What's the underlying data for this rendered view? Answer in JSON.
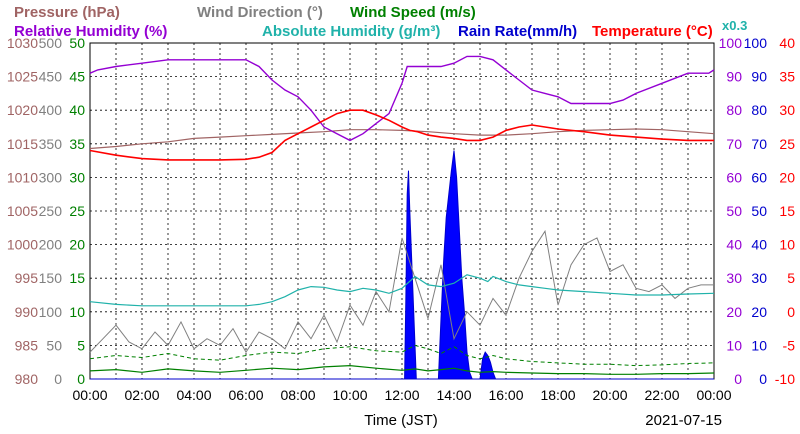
{
  "chart_data": {
    "type": "line",
    "date": "2021-07-15",
    "xlabel": "Time (JST)",
    "x_ticks": [
      "00:00",
      "02:00",
      "04:00",
      "06:00",
      "08:00",
      "10:00",
      "12:00",
      "14:00",
      "16:00",
      "18:00",
      "20:00",
      "22:00",
      "00:00"
    ],
    "x_range_hours": [
      0,
      24
    ],
    "grid": true,
    "legend": [
      {
        "key": "pressure",
        "label": "Pressure (hPa)",
        "color": "#a06464"
      },
      {
        "key": "wind_dir",
        "label": "Wind Direction (°)",
        "color": "#808080"
      },
      {
        "key": "wind_speed",
        "label": "Wind Speed (m/s)",
        "color": "#008000"
      },
      {
        "key": "rh",
        "label": "Relative Humidity (%)",
        "color": "#9400d3"
      },
      {
        "key": "ah",
        "label": "Absolute Humidity (g/m³)",
        "color": "#20b2aa"
      },
      {
        "key": "rain",
        "label": "Rain Rate(mm/h)",
        "color": "#0000cd"
      },
      {
        "key": "temp",
        "label": "Temperature (°C)",
        "color": "#ff0000"
      },
      {
        "key": "ah_scale",
        "label": "x0.3",
        "color": "#20b2aa"
      }
    ],
    "axes": {
      "pressure": {
        "range": [
          980,
          1030
        ],
        "ticks": [
          "980",
          "985",
          "990",
          "995",
          "1000",
          "1005",
          "1010",
          "1015",
          "1020",
          "1025",
          "1030"
        ],
        "color": "#a06464"
      },
      "wind_dir": {
        "range": [
          0,
          500
        ],
        "ticks": [
          "0",
          "50",
          "100",
          "150",
          "200",
          "250",
          "300",
          "350",
          "400",
          "450",
          "500"
        ],
        "color": "#808080"
      },
      "wind_speed": {
        "range": [
          0,
          50
        ],
        "ticks": [
          "0",
          "5",
          "10",
          "15",
          "20",
          "25",
          "30",
          "35",
          "40",
          "45",
          "50"
        ],
        "color": "#008000"
      },
      "rh": {
        "range": [
          0,
          100
        ],
        "ticks": [
          "0",
          "10",
          "20",
          "30",
          "40",
          "50",
          "60",
          "70",
          "80",
          "90",
          "100"
        ],
        "color": "#9400d3"
      },
      "rain": {
        "range": [
          0,
          100
        ],
        "ticks": [
          "0",
          "10",
          "20",
          "30",
          "40",
          "50",
          "60",
          "70",
          "80",
          "90",
          "100"
        ],
        "color": "#0000cd"
      },
      "temp": {
        "range": [
          -10,
          40
        ],
        "ticks": [
          "-10",
          "-5",
          "0",
          "5",
          "10",
          "15",
          "20",
          "25",
          "30",
          "35",
          "40"
        ],
        "color": "#ff0000"
      }
    },
    "series": {
      "temp": {
        "x": [
          0,
          1,
          2,
          3,
          4,
          5,
          6,
          6.5,
          7,
          7.5,
          8,
          8.5,
          9,
          9.5,
          10,
          10.5,
          11,
          11.5,
          12,
          12.3,
          12.6,
          13,
          13.5,
          14,
          14.5,
          15,
          15.5,
          16,
          16.5,
          17,
          17.5,
          18,
          19,
          20,
          21,
          22,
          23,
          24
        ],
        "y": [
          24,
          23.3,
          22.8,
          22.6,
          22.6,
          22.6,
          22.7,
          23,
          23.7,
          25.5,
          26.5,
          27.5,
          28.5,
          29.5,
          30,
          30,
          29.3,
          28.5,
          27.5,
          27,
          26.8,
          26.3,
          26,
          25.8,
          25.5,
          25.5,
          26,
          27,
          27.5,
          27.8,
          27.5,
          27.2,
          26.8,
          26.3,
          26,
          25.7,
          25.5,
          25.5
        ]
      },
      "rh": {
        "x": [
          0,
          0.3,
          1,
          2,
          3,
          4,
          5,
          6,
          6.5,
          7,
          7.5,
          8,
          8.5,
          9,
          9.5,
          10,
          10.5,
          11,
          11.5,
          12,
          12.2,
          12.5,
          13,
          13.5,
          14,
          14.5,
          15,
          15.5,
          16,
          16.5,
          17,
          17.5,
          18,
          18.5,
          19,
          19.5,
          20,
          20.5,
          21,
          22,
          23,
          23.8,
          24
        ],
        "y": [
          91,
          92,
          93,
          94,
          95,
          95,
          95,
          95,
          93,
          89,
          86,
          84,
          80,
          75,
          73,
          71,
          73,
          76,
          79,
          88,
          93,
          93,
          93,
          93,
          94,
          96,
          96,
          95,
          92,
          89,
          86,
          85,
          84,
          82,
          82,
          82,
          82,
          83,
          85,
          88,
          91,
          91,
          92
        ]
      },
      "ah": {
        "x": [
          0,
          1,
          2,
          3,
          4,
          5,
          6,
          6.5,
          7,
          7.5,
          8,
          8.5,
          9,
          9.5,
          10,
          10.5,
          11,
          11.5,
          12,
          12.5,
          13,
          13.5,
          14,
          14.5,
          15,
          15.3,
          15.5,
          16,
          16.5,
          17,
          17.5,
          18,
          19,
          20,
          21,
          22,
          23,
          24
        ],
        "y": [
          23,
          22.2,
          21.8,
          21.8,
          21.8,
          21.8,
          21.8,
          22.2,
          23,
          24.5,
          26.5,
          27.5,
          27.3,
          26.5,
          26,
          27,
          26.5,
          25.5,
          27,
          30.5,
          28,
          27.5,
          28.5,
          31,
          30,
          29,
          30.5,
          29,
          28,
          27.5,
          27,
          26.5,
          26,
          25.5,
          25,
          25,
          25.3,
          25.5
        ]
      },
      "pressure": {
        "x": [
          0,
          1,
          2,
          3,
          4,
          5,
          6,
          7,
          8,
          9,
          10,
          11,
          12,
          13,
          14,
          15,
          16,
          17,
          18,
          19,
          20,
          21,
          22,
          23,
          24
        ],
        "y": [
          1014.3,
          1014.6,
          1015,
          1015.3,
          1015.8,
          1016,
          1016.2,
          1016.4,
          1016.6,
          1016.8,
          1017.1,
          1017.1,
          1017,
          1016.8,
          1016.5,
          1016.3,
          1016.3,
          1016.5,
          1016.8,
          1017,
          1017.1,
          1017.2,
          1017.1,
          1016.8,
          1016.5
        ]
      },
      "wind_dir": {
        "x": [
          0,
          0.5,
          1,
          1.5,
          2,
          2.5,
          3,
          3.5,
          4,
          4.5,
          5,
          5.5,
          6,
          6.5,
          7,
          7.5,
          8,
          8.5,
          9,
          9.5,
          10,
          10.5,
          11,
          11.5,
          12,
          12.5,
          13,
          13.5,
          14,
          14.5,
          15,
          15.5,
          16,
          16.5,
          17,
          17.5,
          18,
          18.5,
          19,
          19.5,
          20,
          20.5,
          21,
          21.5,
          22,
          22.5,
          23,
          23.5,
          24
        ],
        "y": [
          40,
          60,
          80,
          55,
          45,
          70,
          50,
          85,
          45,
          60,
          50,
          75,
          40,
          70,
          60,
          45,
          85,
          60,
          95,
          55,
          110,
          80,
          130,
          100,
          210,
          150,
          90,
          170,
          60,
          100,
          80,
          120,
          95,
          150,
          190,
          220,
          110,
          170,
          200,
          210,
          160,
          170,
          135,
          130,
          140,
          120,
          135,
          140,
          140
        ]
      },
      "wind_speed": {
        "x": [
          0,
          1,
          2,
          3,
          4,
          5,
          6,
          7,
          8,
          9,
          10,
          11,
          12,
          12.5,
          13,
          13.5,
          14,
          14.5,
          15,
          15.5,
          16,
          17,
          18,
          19,
          20,
          21,
          22,
          23,
          24
        ],
        "y": [
          1.2,
          1.4,
          1.0,
          1.5,
          1.2,
          1.0,
          1.3,
          1.6,
          1.4,
          1.8,
          2.0,
          1.6,
          1.3,
          1.5,
          1.2,
          1.4,
          1.6,
          1.2,
          1.0,
          1.1,
          1.0,
          0.9,
          0.8,
          0.8,
          0.7,
          0.7,
          0.8,
          0.8,
          0.9
        ]
      },
      "wind_gust": {
        "x": [
          0,
          1,
          2,
          3,
          4,
          5,
          6,
          7,
          8,
          9,
          10,
          11,
          12,
          12.5,
          13,
          13.5,
          14,
          14.5,
          15,
          15.5,
          16,
          17,
          18,
          19,
          20,
          21,
          22,
          23,
          24
        ],
        "y": [
          3.0,
          3.5,
          3.2,
          3.8,
          3.0,
          2.8,
          3.5,
          4.0,
          3.8,
          4.5,
          4.8,
          4.2,
          4.0,
          5.0,
          4.5,
          3.8,
          4.8,
          3.5,
          3.0,
          3.5,
          3.0,
          2.6,
          2.4,
          2.2,
          2.2,
          2.0,
          2.1,
          2.3,
          2.4
        ]
      },
      "rain": {
        "x": [
          0,
          12.1,
          12.15,
          12.2,
          12.25,
          12.3,
          12.4,
          12.5,
          12.55,
          13.4,
          13.5,
          13.6,
          13.7,
          13.8,
          13.9,
          14.0,
          14.1,
          14.2,
          14.3,
          14.4,
          14.5,
          14.6,
          14.7,
          15.0,
          15.05,
          15.1,
          15.2,
          15.3,
          15.4,
          15.5,
          15.6,
          24
        ],
        "y": [
          0,
          0,
          25,
          55,
          62,
          50,
          30,
          10,
          0,
          0,
          18,
          35,
          48,
          55,
          62,
          68,
          60,
          45,
          30,
          20,
          8,
          2,
          0,
          0,
          3,
          6,
          8,
          7,
          5,
          2,
          0,
          0
        ]
      }
    }
  }
}
